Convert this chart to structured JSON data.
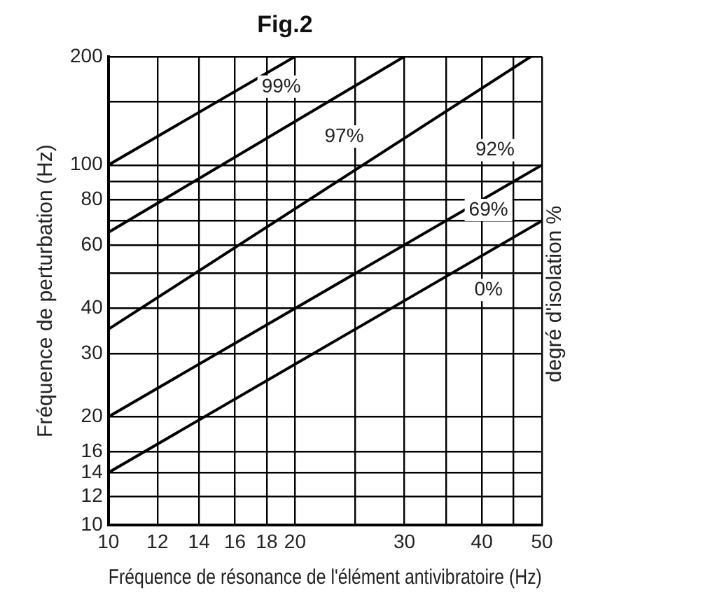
{
  "chart_data": {
    "type": "line",
    "title": "Fig.2",
    "xlabel": "Fréquence de résonance de l'élément antivibratoire (Hz)",
    "ylabel": "Fréquence de perturbation (Hz)",
    "y2label": "degré d'isolation %",
    "log": "xy",
    "grid": true,
    "legend": false,
    "marker": "none",
    "line_style": "solid",
    "xlim": [
      10,
      50
    ],
    "xticks": [
      10,
      12,
      14,
      16,
      18,
      20,
      {
        "value": 25,
        "label": null
      },
      30,
      {
        "value": 35,
        "label": null
      },
      40,
      {
        "value": 45,
        "label": null
      },
      50
    ],
    "ylim": [
      10,
      200
    ],
    "yticks": [
      10,
      12,
      14,
      16,
      20,
      30,
      40,
      {
        "value": 50,
        "label": null
      },
      60,
      {
        "value": 70,
        "label": null
      },
      80,
      {
        "value": 90,
        "label": null
      },
      100,
      {
        "value": 150,
        "label": null
      },
      200
    ],
    "series": [
      {
        "color": "#000000",
        "x": [
          10,
          20
        ],
        "values": [
          100,
          200
        ]
      },
      {
        "color": "#000000",
        "x": [
          10,
          30
        ],
        "values": [
          65,
          200
        ]
      },
      {
        "color": "#000000",
        "x": [
          10,
          48
        ],
        "values": [
          35,
          200
        ]
      },
      {
        "color": "#000000",
        "x": [
          10,
          50
        ],
        "values": [
          20,
          100
        ]
      },
      {
        "color": "#000000",
        "x": [
          10,
          50
        ],
        "values": [
          14,
          70
        ]
      }
    ],
    "annotations": [
      {
        "text": "99%",
        "x": 19,
        "y": 165
      },
      {
        "text": "97%",
        "x": 24,
        "y": 120
      },
      {
        "text": "92%",
        "x": 42,
        "y": 110
      },
      {
        "text": "69%",
        "x": 41,
        "y": 75
      },
      {
        "text": "0%",
        "x": 41,
        "y": 45
      }
    ]
  }
}
